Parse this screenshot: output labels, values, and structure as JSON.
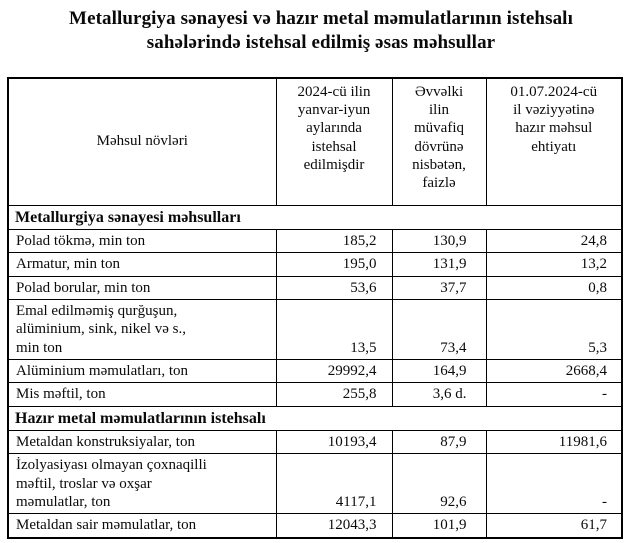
{
  "title": "Metallurgiya sənayesi və hazır metal məmulatlarının istehsalı\nsahələrində istehsal edilmiş əsas məhsullar",
  "table": {
    "columns": [
      "Məhsul növləri",
      "2024-cü ilin\nyanvar-iyun\naylarında\nistehsal\nedilmişdir",
      "Əvvəlki\nilin\nmüvafiq\ndövrünə\nnisbətən,\nfaizlə",
      "01.07.2024-cü\nil vəziyyətinə\nhazır məhsul\nehtiyatı"
    ],
    "sections": [
      {
        "header": "Metallurgiya sənayesi məhsulları",
        "rows": [
          {
            "product": "Polad tökmə, min ton",
            "produced": "185,2",
            "vs_prev_pct": "130,9",
            "stock": "24,8"
          },
          {
            "product": "Armatur, min ton",
            "produced": "195,0",
            "vs_prev_pct": "131,9",
            "stock": "13,2"
          },
          {
            "product": "Polad borular, min ton",
            "produced": "53,6",
            "vs_prev_pct": "37,7",
            "stock": "0,8"
          },
          {
            "product": "Emal edilməmiş qurğuşun,\nalüminium, sink, nikel və s.,\nmin ton",
            "produced": "13,5",
            "vs_prev_pct": "73,4",
            "stock": "5,3"
          },
          {
            "product": "Alüminium məmulatları, ton",
            "produced": "29992,4",
            "vs_prev_pct": "164,9",
            "stock": "2668,4"
          },
          {
            "product": "Mis məftil, ton",
            "produced": "255,8",
            "vs_prev_pct": "3,6 d.",
            "stock": "-"
          }
        ]
      },
      {
        "header": "Hazır metal məmulatlarının istehsalı",
        "rows": [
          {
            "product": "Metaldan konstruksiyalar, ton",
            "produced": "10193,4",
            "vs_prev_pct": "87,9",
            "stock": "11981,6"
          },
          {
            "product": "İzolyasiyası olmayan çoxnaqilli\nməftil, troslar və oxşar\nməmulatlar, ton",
            "produced": "4117,1",
            "vs_prev_pct": "92,6",
            "stock": "-"
          },
          {
            "product": "Metaldan sair məmulatlar, ton",
            "produced": "12043,3",
            "vs_prev_pct": "101,9",
            "stock": "61,7"
          }
        ]
      }
    ]
  }
}
